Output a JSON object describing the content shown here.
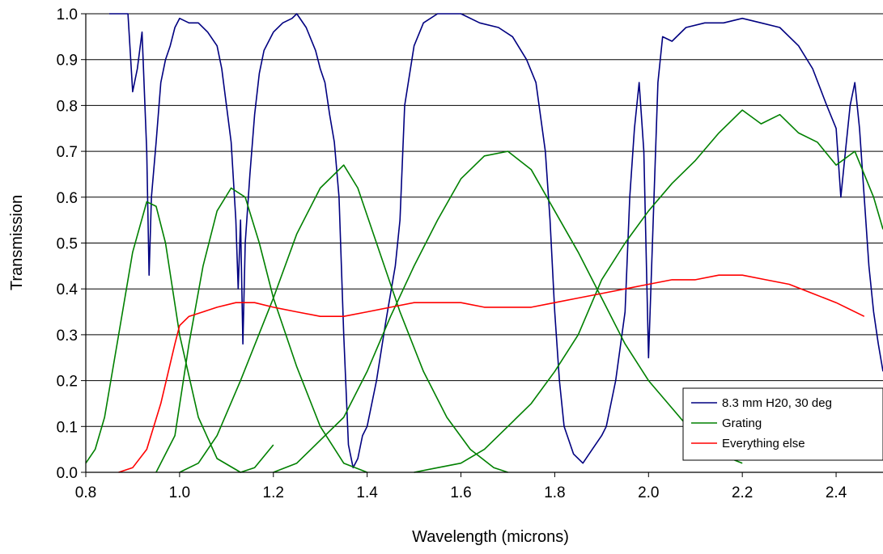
{
  "chart_data": {
    "type": "line",
    "title": "",
    "xlabel": "Wavelength (microns)",
    "ylabel": "Transmission",
    "xlim": [
      0.8,
      2.5
    ],
    "ylim": [
      0.0,
      1.0
    ],
    "x_ticks": [
      "0.8",
      "1.0",
      "1.2",
      "1.4",
      "1.6",
      "1.8",
      "2.0",
      "2.2",
      "2.4"
    ],
    "y_ticks": [
      "0.0",
      "0.1",
      "0.2",
      "0.3",
      "0.4",
      "0.5",
      "0.6",
      "0.7",
      "0.8",
      "0.9",
      "1.0"
    ],
    "grid": "horizontal",
    "legend_position": "lower-right",
    "series": [
      {
        "name": "8.3 mm H20, 30 deg",
        "color": "#000080",
        "points": [
          [
            0.85,
            1.0
          ],
          [
            0.89,
            1.0
          ],
          [
            0.9,
            0.83
          ],
          [
            0.91,
            0.88
          ],
          [
            0.92,
            0.96
          ],
          [
            0.93,
            0.7
          ],
          [
            0.935,
            0.43
          ],
          [
            0.94,
            0.6
          ],
          [
            0.95,
            0.72
          ],
          [
            0.96,
            0.85
          ],
          [
            0.97,
            0.9
          ],
          [
            0.98,
            0.93
          ],
          [
            0.99,
            0.97
          ],
          [
            1.0,
            0.99
          ],
          [
            1.02,
            0.98
          ],
          [
            1.04,
            0.98
          ],
          [
            1.06,
            0.96
          ],
          [
            1.08,
            0.93
          ],
          [
            1.09,
            0.88
          ],
          [
            1.1,
            0.8
          ],
          [
            1.11,
            0.72
          ],
          [
            1.12,
            0.55
          ],
          [
            1.125,
            0.4
          ],
          [
            1.13,
            0.55
          ],
          [
            1.135,
            0.28
          ],
          [
            1.14,
            0.5
          ],
          [
            1.15,
            0.65
          ],
          [
            1.16,
            0.78
          ],
          [
            1.17,
            0.87
          ],
          [
            1.18,
            0.92
          ],
          [
            1.2,
            0.96
          ],
          [
            1.22,
            0.98
          ],
          [
            1.24,
            0.99
          ],
          [
            1.25,
            1.0
          ],
          [
            1.27,
            0.97
          ],
          [
            1.29,
            0.92
          ],
          [
            1.3,
            0.88
          ],
          [
            1.31,
            0.85
          ],
          [
            1.32,
            0.78
          ],
          [
            1.33,
            0.72
          ],
          [
            1.34,
            0.6
          ],
          [
            1.35,
            0.3
          ],
          [
            1.36,
            0.06
          ],
          [
            1.37,
            0.01
          ],
          [
            1.38,
            0.03
          ],
          [
            1.39,
            0.08
          ],
          [
            1.4,
            0.1
          ],
          [
            1.42,
            0.2
          ],
          [
            1.44,
            0.33
          ],
          [
            1.46,
            0.45
          ],
          [
            1.47,
            0.55
          ],
          [
            1.48,
            0.8
          ],
          [
            1.5,
            0.93
          ],
          [
            1.52,
            0.98
          ],
          [
            1.55,
            1.0
          ],
          [
            1.6,
            1.0
          ],
          [
            1.64,
            0.98
          ],
          [
            1.68,
            0.97
          ],
          [
            1.71,
            0.95
          ],
          [
            1.74,
            0.9
          ],
          [
            1.76,
            0.85
          ],
          [
            1.78,
            0.7
          ],
          [
            1.79,
            0.55
          ],
          [
            1.8,
            0.35
          ],
          [
            1.81,
            0.2
          ],
          [
            1.82,
            0.1
          ],
          [
            1.84,
            0.04
          ],
          [
            1.86,
            0.02
          ],
          [
            1.88,
            0.05
          ],
          [
            1.9,
            0.08
          ],
          [
            1.91,
            0.1
          ],
          [
            1.93,
            0.2
          ],
          [
            1.95,
            0.35
          ],
          [
            1.96,
            0.6
          ],
          [
            1.97,
            0.75
          ],
          [
            1.98,
            0.85
          ],
          [
            1.99,
            0.7
          ],
          [
            2.0,
            0.25
          ],
          [
            2.01,
            0.55
          ],
          [
            2.02,
            0.85
          ],
          [
            2.03,
            0.95
          ],
          [
            2.05,
            0.94
          ],
          [
            2.08,
            0.97
          ],
          [
            2.12,
            0.98
          ],
          [
            2.16,
            0.98
          ],
          [
            2.2,
            0.99
          ],
          [
            2.24,
            0.98
          ],
          [
            2.28,
            0.97
          ],
          [
            2.32,
            0.93
          ],
          [
            2.35,
            0.88
          ],
          [
            2.38,
            0.8
          ],
          [
            2.4,
            0.75
          ],
          [
            2.41,
            0.6
          ],
          [
            2.42,
            0.7
          ],
          [
            2.43,
            0.8
          ],
          [
            2.44,
            0.85
          ],
          [
            2.45,
            0.75
          ],
          [
            2.46,
            0.6
          ],
          [
            2.47,
            0.45
          ],
          [
            2.48,
            0.35
          ],
          [
            2.49,
            0.28
          ],
          [
            2.5,
            0.22
          ]
        ]
      },
      {
        "name": "Grating",
        "color": "#008000",
        "segments": [
          [
            [
              0.8,
              0.02
            ],
            [
              0.82,
              0.05
            ],
            [
              0.84,
              0.12
            ],
            [
              0.87,
              0.3
            ],
            [
              0.9,
              0.48
            ],
            [
              0.93,
              0.59
            ],
            [
              0.95,
              0.58
            ],
            [
              0.97,
              0.5
            ],
            [
              1.0,
              0.3
            ],
            [
              1.04,
              0.12
            ],
            [
              1.08,
              0.03
            ],
            [
              1.13,
              0.0
            ],
            [
              1.16,
              0.01
            ],
            [
              1.2,
              0.06
            ]
          ],
          [
            [
              0.95,
              0.0
            ],
            [
              0.99,
              0.08
            ],
            [
              1.02,
              0.28
            ],
            [
              1.05,
              0.45
            ],
            [
              1.08,
              0.57
            ],
            [
              1.11,
              0.62
            ],
            [
              1.14,
              0.6
            ],
            [
              1.17,
              0.5
            ],
            [
              1.2,
              0.38
            ],
            [
              1.25,
              0.23
            ],
            [
              1.3,
              0.1
            ],
            [
              1.35,
              0.02
            ],
            [
              1.4,
              0.0
            ]
          ],
          [
            [
              1.0,
              0.0
            ],
            [
              1.04,
              0.02
            ],
            [
              1.08,
              0.08
            ],
            [
              1.13,
              0.2
            ],
            [
              1.2,
              0.38
            ],
            [
              1.25,
              0.52
            ],
            [
              1.3,
              0.62
            ],
            [
              1.35,
              0.67
            ],
            [
              1.38,
              0.62
            ],
            [
              1.42,
              0.5
            ],
            [
              1.47,
              0.35
            ],
            [
              1.52,
              0.22
            ],
            [
              1.57,
              0.12
            ],
            [
              1.62,
              0.05
            ],
            [
              1.67,
              0.01
            ],
            [
              1.7,
              0.0
            ]
          ],
          [
            [
              1.2,
              0.0
            ],
            [
              1.25,
              0.02
            ],
            [
              1.3,
              0.07
            ],
            [
              1.35,
              0.12
            ],
            [
              1.4,
              0.22
            ],
            [
              1.45,
              0.34
            ],
            [
              1.5,
              0.45
            ],
            [
              1.55,
              0.55
            ],
            [
              1.6,
              0.64
            ],
            [
              1.65,
              0.69
            ],
            [
              1.7,
              0.7
            ],
            [
              1.75,
              0.66
            ],
            [
              1.8,
              0.57
            ],
            [
              1.85,
              0.48
            ],
            [
              1.9,
              0.38
            ],
            [
              1.95,
              0.28
            ],
            [
              2.0,
              0.2
            ],
            [
              2.05,
              0.14
            ],
            [
              2.1,
              0.08
            ],
            [
              2.15,
              0.04
            ],
            [
              2.2,
              0.02
            ]
          ],
          [
            [
              1.5,
              0.0
            ],
            [
              1.55,
              0.01
            ],
            [
              1.6,
              0.02
            ],
            [
              1.65,
              0.05
            ],
            [
              1.7,
              0.1
            ],
            [
              1.75,
              0.15
            ],
            [
              1.8,
              0.22
            ],
            [
              1.85,
              0.3
            ],
            [
              1.9,
              0.42
            ],
            [
              1.95,
              0.5
            ],
            [
              2.0,
              0.57
            ],
            [
              2.05,
              0.63
            ],
            [
              2.1,
              0.68
            ],
            [
              2.15,
              0.74
            ],
            [
              2.2,
              0.79
            ],
            [
              2.24,
              0.76
            ],
            [
              2.28,
              0.78
            ],
            [
              2.32,
              0.74
            ],
            [
              2.36,
              0.72
            ],
            [
              2.4,
              0.67
            ],
            [
              2.44,
              0.7
            ],
            [
              2.48,
              0.6
            ],
            [
              2.5,
              0.53
            ]
          ]
        ]
      },
      {
        "name": "Everything else",
        "color": "#ff0000",
        "points": [
          [
            0.87,
            0.0
          ],
          [
            0.9,
            0.01
          ],
          [
            0.93,
            0.05
          ],
          [
            0.96,
            0.15
          ],
          [
            0.99,
            0.28
          ],
          [
            1.0,
            0.32
          ],
          [
            1.02,
            0.34
          ],
          [
            1.05,
            0.35
          ],
          [
            1.08,
            0.36
          ],
          [
            1.12,
            0.37
          ],
          [
            1.16,
            0.37
          ],
          [
            1.2,
            0.36
          ],
          [
            1.25,
            0.35
          ],
          [
            1.3,
            0.34
          ],
          [
            1.35,
            0.34
          ],
          [
            1.4,
            0.35
          ],
          [
            1.45,
            0.36
          ],
          [
            1.5,
            0.37
          ],
          [
            1.55,
            0.37
          ],
          [
            1.6,
            0.37
          ],
          [
            1.65,
            0.36
          ],
          [
            1.7,
            0.36
          ],
          [
            1.75,
            0.36
          ],
          [
            1.8,
            0.37
          ],
          [
            1.85,
            0.38
          ],
          [
            1.9,
            0.39
          ],
          [
            1.95,
            0.4
          ],
          [
            2.0,
            0.41
          ],
          [
            2.05,
            0.42
          ],
          [
            2.1,
            0.42
          ],
          [
            2.15,
            0.43
          ],
          [
            2.2,
            0.43
          ],
          [
            2.25,
            0.42
          ],
          [
            2.3,
            0.41
          ],
          [
            2.35,
            0.39
          ],
          [
            2.4,
            0.37
          ],
          [
            2.46,
            0.34
          ]
        ]
      }
    ]
  }
}
